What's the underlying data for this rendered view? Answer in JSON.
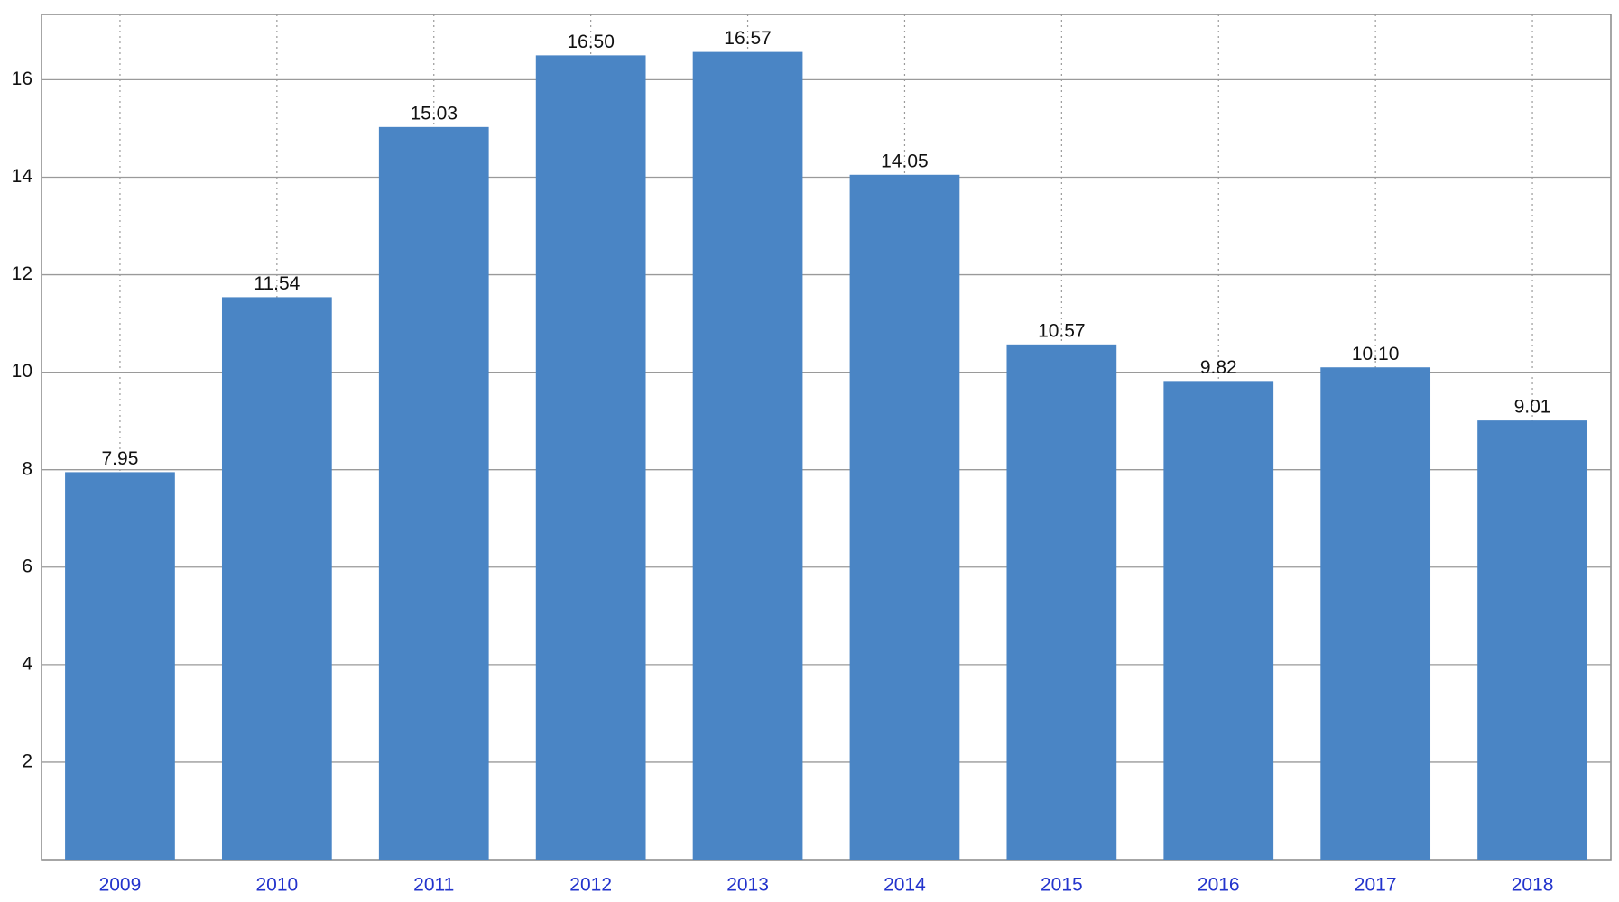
{
  "chart_data": {
    "type": "bar",
    "categories": [
      "2009",
      "2010",
      "2011",
      "2012",
      "2013",
      "2014",
      "2015",
      "2016",
      "2017",
      "2018"
    ],
    "values": [
      7.95,
      11.54,
      15.03,
      16.5,
      16.57,
      14.05,
      10.57,
      9.82,
      10.1,
      9.01
    ],
    "value_labels": [
      "7.95",
      "11.54",
      "15.03",
      "16.50",
      "16.57",
      "14.05",
      "10.57",
      "9.82",
      "10.10",
      "9.01"
    ],
    "color": "#4a85c5",
    "ylim": [
      0,
      17.34
    ],
    "yticks": [
      2,
      4,
      6,
      8,
      10,
      12,
      14,
      16
    ],
    "grid": true
  }
}
